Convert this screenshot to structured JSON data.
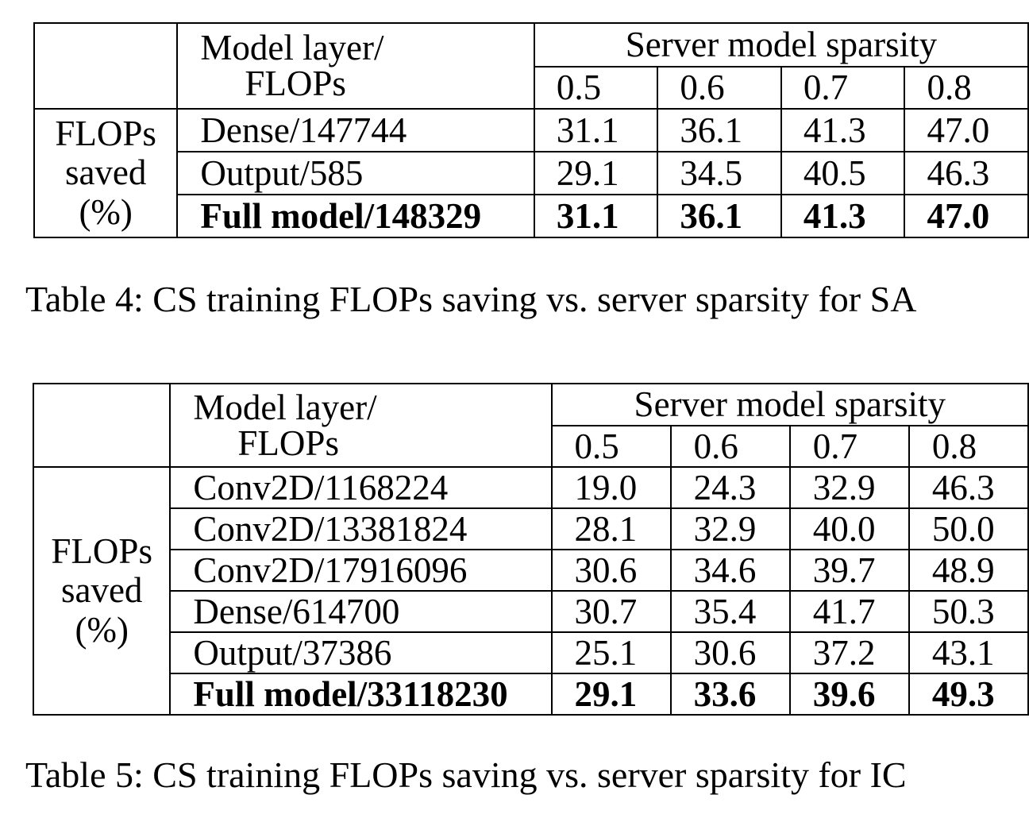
{
  "tables": [
    {
      "header": {
        "layer_line1": "Model layer/",
        "layer_line2": "FLOPs",
        "sparsity_label": "Server model sparsity",
        "sparsities": [
          "0.5",
          "0.6",
          "0.7",
          "0.8"
        ]
      },
      "stub": {
        "line1": "FLOPs",
        "line2": "saved",
        "line3": "(%)"
      },
      "rows": [
        {
          "layer": "Dense/147744",
          "values": [
            "31.1",
            "36.1",
            "41.3",
            "47.0"
          ],
          "bold": false
        },
        {
          "layer": "Output/585",
          "values": [
            "29.1",
            "34.5",
            "40.5",
            "46.3"
          ],
          "bold": false
        },
        {
          "layer": "Full model/148329",
          "values": [
            "31.1",
            "36.1",
            "41.3",
            "47.0"
          ],
          "bold": true
        }
      ],
      "caption": "Table 4: CS training FLOPs saving vs. server sparsity for SA"
    },
    {
      "header": {
        "layer_line1": "Model layer/",
        "layer_line2": "FLOPs",
        "sparsity_label": "Server model sparsity",
        "sparsities": [
          "0.5",
          "0.6",
          "0.7",
          "0.8"
        ]
      },
      "stub": {
        "line1": "FLOPs",
        "line2": "saved",
        "line3": "(%)"
      },
      "rows": [
        {
          "layer": "Conv2D/1168224",
          "values": [
            "19.0",
            "24.3",
            "32.9",
            "46.3"
          ],
          "bold": false
        },
        {
          "layer": "Conv2D/13381824",
          "values": [
            "28.1",
            "32.9",
            "40.0",
            "50.0"
          ],
          "bold": false
        },
        {
          "layer": "Conv2D/17916096",
          "values": [
            "30.6",
            "34.6",
            "39.7",
            "48.9"
          ],
          "bold": false
        },
        {
          "layer": "Dense/614700",
          "values": [
            "30.7",
            "35.4",
            "41.7",
            "50.3"
          ],
          "bold": false
        },
        {
          "layer": "Output/37386",
          "values": [
            "25.1",
            "30.6",
            "37.2",
            "43.1"
          ],
          "bold": false
        },
        {
          "layer": "Full model/33118230",
          "values": [
            "29.1",
            "33.6",
            "39.6",
            "49.3"
          ],
          "bold": true
        }
      ],
      "caption": "Table 5: CS training FLOPs saving vs. server sparsity for IC"
    }
  ]
}
